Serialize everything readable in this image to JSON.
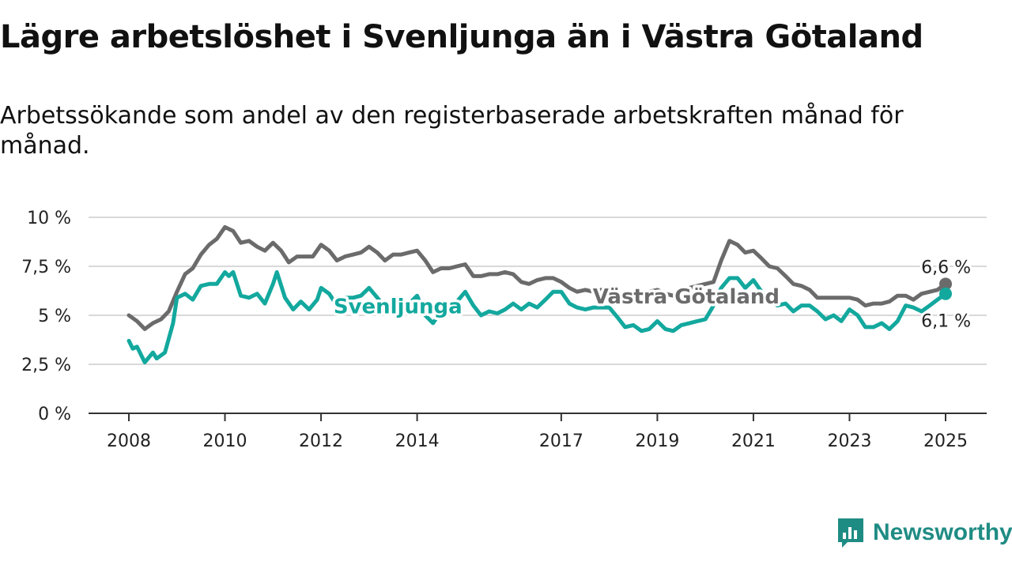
{
  "header": {
    "title": "Lägre arbetslöshet i Svenljunga än i Västra Götaland",
    "subtitle": "Arbetssökande som andel av den registerbaserade arbetskraften månad för månad."
  },
  "brand": {
    "name": "Newsworthy"
  },
  "chart_data": {
    "type": "line",
    "title": "Lägre arbetslöshet i Svenljunga än i Västra Götaland",
    "subtitle": "Arbetssökande som andel av den registerbaserade arbetskraften månad för månad.",
    "xlabel": "",
    "ylabel": "",
    "xlim": [
      2008,
      2025.6
    ],
    "ylim": [
      0,
      10
    ],
    "grid": true,
    "y_ticks": [
      0,
      2.5,
      5,
      7.5,
      10
    ],
    "y_tick_labels": [
      "0 %",
      "2,5 %",
      "5 %",
      "7,5 %",
      "10 %"
    ],
    "x_ticks": [
      2008,
      2010,
      2012,
      2014,
      2017,
      2019,
      2021,
      2023,
      2025
    ],
    "x_tick_labels": [
      "2008",
      "2010",
      "2012",
      "2014",
      "2017",
      "2019",
      "2021",
      "2023",
      "2025"
    ],
    "series": [
      {
        "name": "Västra Götaland",
        "color": "#6b6b6b",
        "end_label": "6,6 %",
        "points": [
          [
            2008.0,
            5.0
          ],
          [
            2008.17,
            4.7
          ],
          [
            2008.33,
            4.3
          ],
          [
            2008.5,
            4.6
          ],
          [
            2008.67,
            4.8
          ],
          [
            2008.83,
            5.2
          ],
          [
            2009.0,
            6.2
          ],
          [
            2009.17,
            7.1
          ],
          [
            2009.33,
            7.4
          ],
          [
            2009.5,
            8.1
          ],
          [
            2009.67,
            8.6
          ],
          [
            2009.83,
            8.9
          ],
          [
            2010.0,
            9.5
          ],
          [
            2010.17,
            9.3
          ],
          [
            2010.33,
            8.7
          ],
          [
            2010.5,
            8.8
          ],
          [
            2010.67,
            8.5
          ],
          [
            2010.83,
            8.3
          ],
          [
            2011.0,
            8.7
          ],
          [
            2011.17,
            8.3
          ],
          [
            2011.33,
            7.7
          ],
          [
            2011.5,
            8.0
          ],
          [
            2011.67,
            8.0
          ],
          [
            2011.83,
            8.0
          ],
          [
            2012.0,
            8.6
          ],
          [
            2012.17,
            8.3
          ],
          [
            2012.33,
            7.8
          ],
          [
            2012.5,
            8.0
          ],
          [
            2012.67,
            8.1
          ],
          [
            2012.83,
            8.2
          ],
          [
            2013.0,
            8.5
          ],
          [
            2013.17,
            8.2
          ],
          [
            2013.33,
            7.8
          ],
          [
            2013.5,
            8.1
          ],
          [
            2013.67,
            8.1
          ],
          [
            2013.83,
            8.2
          ],
          [
            2014.0,
            8.3
          ],
          [
            2014.17,
            7.8
          ],
          [
            2014.33,
            7.2
          ],
          [
            2014.5,
            7.4
          ],
          [
            2014.67,
            7.4
          ],
          [
            2014.83,
            7.5
          ],
          [
            2015.0,
            7.6
          ],
          [
            2015.17,
            7.0
          ],
          [
            2015.33,
            7.0
          ],
          [
            2015.5,
            7.1
          ],
          [
            2015.67,
            7.1
          ],
          [
            2015.83,
            7.2
          ],
          [
            2016.0,
            7.1
          ],
          [
            2016.17,
            6.7
          ],
          [
            2016.33,
            6.6
          ],
          [
            2016.5,
            6.8
          ],
          [
            2016.67,
            6.9
          ],
          [
            2016.83,
            6.9
          ],
          [
            2017.0,
            6.7
          ],
          [
            2017.17,
            6.4
          ],
          [
            2017.33,
            6.2
          ],
          [
            2017.5,
            6.3
          ],
          [
            2017.67,
            6.2
          ],
          [
            2017.83,
            6.3
          ],
          [
            2018.0,
            6.4
          ],
          [
            2018.17,
            6.1
          ],
          [
            2018.33,
            5.9
          ],
          [
            2018.5,
            6.1
          ],
          [
            2018.67,
            6.1
          ],
          [
            2018.83,
            6.2
          ],
          [
            2019.0,
            6.3
          ],
          [
            2019.17,
            6.1
          ],
          [
            2019.33,
            6.0
          ],
          [
            2019.5,
            6.3
          ],
          [
            2019.67,
            6.4
          ],
          [
            2019.83,
            6.5
          ],
          [
            2020.0,
            6.6
          ],
          [
            2020.17,
            6.7
          ],
          [
            2020.33,
            7.8
          ],
          [
            2020.5,
            8.8
          ],
          [
            2020.67,
            8.6
          ],
          [
            2020.83,
            8.2
          ],
          [
            2021.0,
            8.3
          ],
          [
            2021.17,
            7.9
          ],
          [
            2021.33,
            7.5
          ],
          [
            2021.5,
            7.4
          ],
          [
            2021.67,
            7.0
          ],
          [
            2021.83,
            6.6
          ],
          [
            2022.0,
            6.5
          ],
          [
            2022.17,
            6.3
          ],
          [
            2022.33,
            5.9
          ],
          [
            2022.5,
            5.9
          ],
          [
            2022.67,
            5.9
          ],
          [
            2022.83,
            5.9
          ],
          [
            2023.0,
            5.9
          ],
          [
            2023.17,
            5.8
          ],
          [
            2023.33,
            5.5
          ],
          [
            2023.5,
            5.6
          ],
          [
            2023.67,
            5.6
          ],
          [
            2023.83,
            5.7
          ],
          [
            2024.0,
            6.0
          ],
          [
            2024.17,
            6.0
          ],
          [
            2024.33,
            5.8
          ],
          [
            2024.5,
            6.1
          ],
          [
            2024.67,
            6.2
          ],
          [
            2024.83,
            6.3
          ],
          [
            2025.0,
            6.6
          ]
        ]
      },
      {
        "name": "Svenljunga",
        "color": "#13a89e",
        "end_label": "6,1 %",
        "points": [
          [
            2008.0,
            3.7
          ],
          [
            2008.08,
            3.3
          ],
          [
            2008.17,
            3.4
          ],
          [
            2008.33,
            2.6
          ],
          [
            2008.5,
            3.1
          ],
          [
            2008.58,
            2.8
          ],
          [
            2008.75,
            3.1
          ],
          [
            2008.92,
            4.6
          ],
          [
            2009.0,
            5.9
          ],
          [
            2009.17,
            6.1
          ],
          [
            2009.33,
            5.8
          ],
          [
            2009.5,
            6.5
          ],
          [
            2009.67,
            6.6
          ],
          [
            2009.83,
            6.6
          ],
          [
            2010.0,
            7.2
          ],
          [
            2010.08,
            7.0
          ],
          [
            2010.17,
            7.2
          ],
          [
            2010.33,
            6.0
          ],
          [
            2010.5,
            5.9
          ],
          [
            2010.67,
            6.1
          ],
          [
            2010.83,
            5.6
          ],
          [
            2011.0,
            6.6
          ],
          [
            2011.08,
            7.2
          ],
          [
            2011.25,
            5.9
          ],
          [
            2011.42,
            5.3
          ],
          [
            2011.58,
            5.7
          ],
          [
            2011.75,
            5.3
          ],
          [
            2011.92,
            5.8
          ],
          [
            2012.0,
            6.4
          ],
          [
            2012.17,
            6.1
          ],
          [
            2012.33,
            5.5
          ],
          [
            2012.5,
            5.9
          ],
          [
            2012.67,
            5.9
          ],
          [
            2012.83,
            6.0
          ],
          [
            2013.0,
            6.4
          ],
          [
            2013.17,
            5.9
          ],
          [
            2013.33,
            5.4
          ],
          [
            2013.5,
            5.6
          ],
          [
            2013.67,
            5.5
          ],
          [
            2013.83,
            5.6
          ],
          [
            2014.0,
            6.0
          ],
          [
            2014.17,
            5.0
          ],
          [
            2014.33,
            4.6
          ],
          [
            2014.5,
            5.2
          ],
          [
            2014.67,
            5.5
          ],
          [
            2014.83,
            5.7
          ],
          [
            2015.0,
            6.2
          ],
          [
            2015.17,
            5.5
          ],
          [
            2015.33,
            5.0
          ],
          [
            2015.5,
            5.2
          ],
          [
            2015.67,
            5.1
          ],
          [
            2015.83,
            5.3
          ],
          [
            2016.0,
            5.6
          ],
          [
            2016.17,
            5.3
          ],
          [
            2016.33,
            5.6
          ],
          [
            2016.5,
            5.4
          ],
          [
            2016.67,
            5.8
          ],
          [
            2016.83,
            6.2
          ],
          [
            2017.0,
            6.2
          ],
          [
            2017.17,
            5.6
          ],
          [
            2017.33,
            5.4
          ],
          [
            2017.5,
            5.3
          ],
          [
            2017.67,
            5.4
          ],
          [
            2017.83,
            5.4
          ],
          [
            2018.0,
            5.4
          ],
          [
            2018.17,
            4.9
          ],
          [
            2018.33,
            4.4
          ],
          [
            2018.5,
            4.5
          ],
          [
            2018.67,
            4.2
          ],
          [
            2018.83,
            4.3
          ],
          [
            2019.0,
            4.7
          ],
          [
            2019.17,
            4.3
          ],
          [
            2019.33,
            4.2
          ],
          [
            2019.5,
            4.5
          ],
          [
            2019.67,
            4.6
          ],
          [
            2019.83,
            4.7
          ],
          [
            2020.0,
            4.8
          ],
          [
            2020.17,
            5.5
          ],
          [
            2020.33,
            6.4
          ],
          [
            2020.5,
            6.9
          ],
          [
            2020.67,
            6.9
          ],
          [
            2020.83,
            6.4
          ],
          [
            2021.0,
            6.8
          ],
          [
            2021.17,
            6.2
          ],
          [
            2021.33,
            5.8
          ],
          [
            2021.5,
            5.5
          ],
          [
            2021.67,
            5.6
          ],
          [
            2021.83,
            5.2
          ],
          [
            2022.0,
            5.5
          ],
          [
            2022.17,
            5.5
          ],
          [
            2022.33,
            5.2
          ],
          [
            2022.5,
            4.8
          ],
          [
            2022.67,
            5.0
          ],
          [
            2022.83,
            4.7
          ],
          [
            2023.0,
            5.3
          ],
          [
            2023.17,
            5.0
          ],
          [
            2023.33,
            4.4
          ],
          [
            2023.5,
            4.4
          ],
          [
            2023.67,
            4.6
          ],
          [
            2023.83,
            4.3
          ],
          [
            2024.0,
            4.7
          ],
          [
            2024.17,
            5.5
          ],
          [
            2024.33,
            5.4
          ],
          [
            2024.5,
            5.2
          ],
          [
            2024.67,
            5.5
          ],
          [
            2024.83,
            5.8
          ],
          [
            2025.0,
            6.1
          ]
        ]
      }
    ],
    "annotations": [
      {
        "text": "Svenljunga",
        "series": "Svenljunga",
        "x": 2013.6,
        "y": 5.5
      },
      {
        "text": "Västra Götaland",
        "series": "Västra Götaland",
        "x": 2019.6,
        "y": 6.0
      }
    ]
  }
}
